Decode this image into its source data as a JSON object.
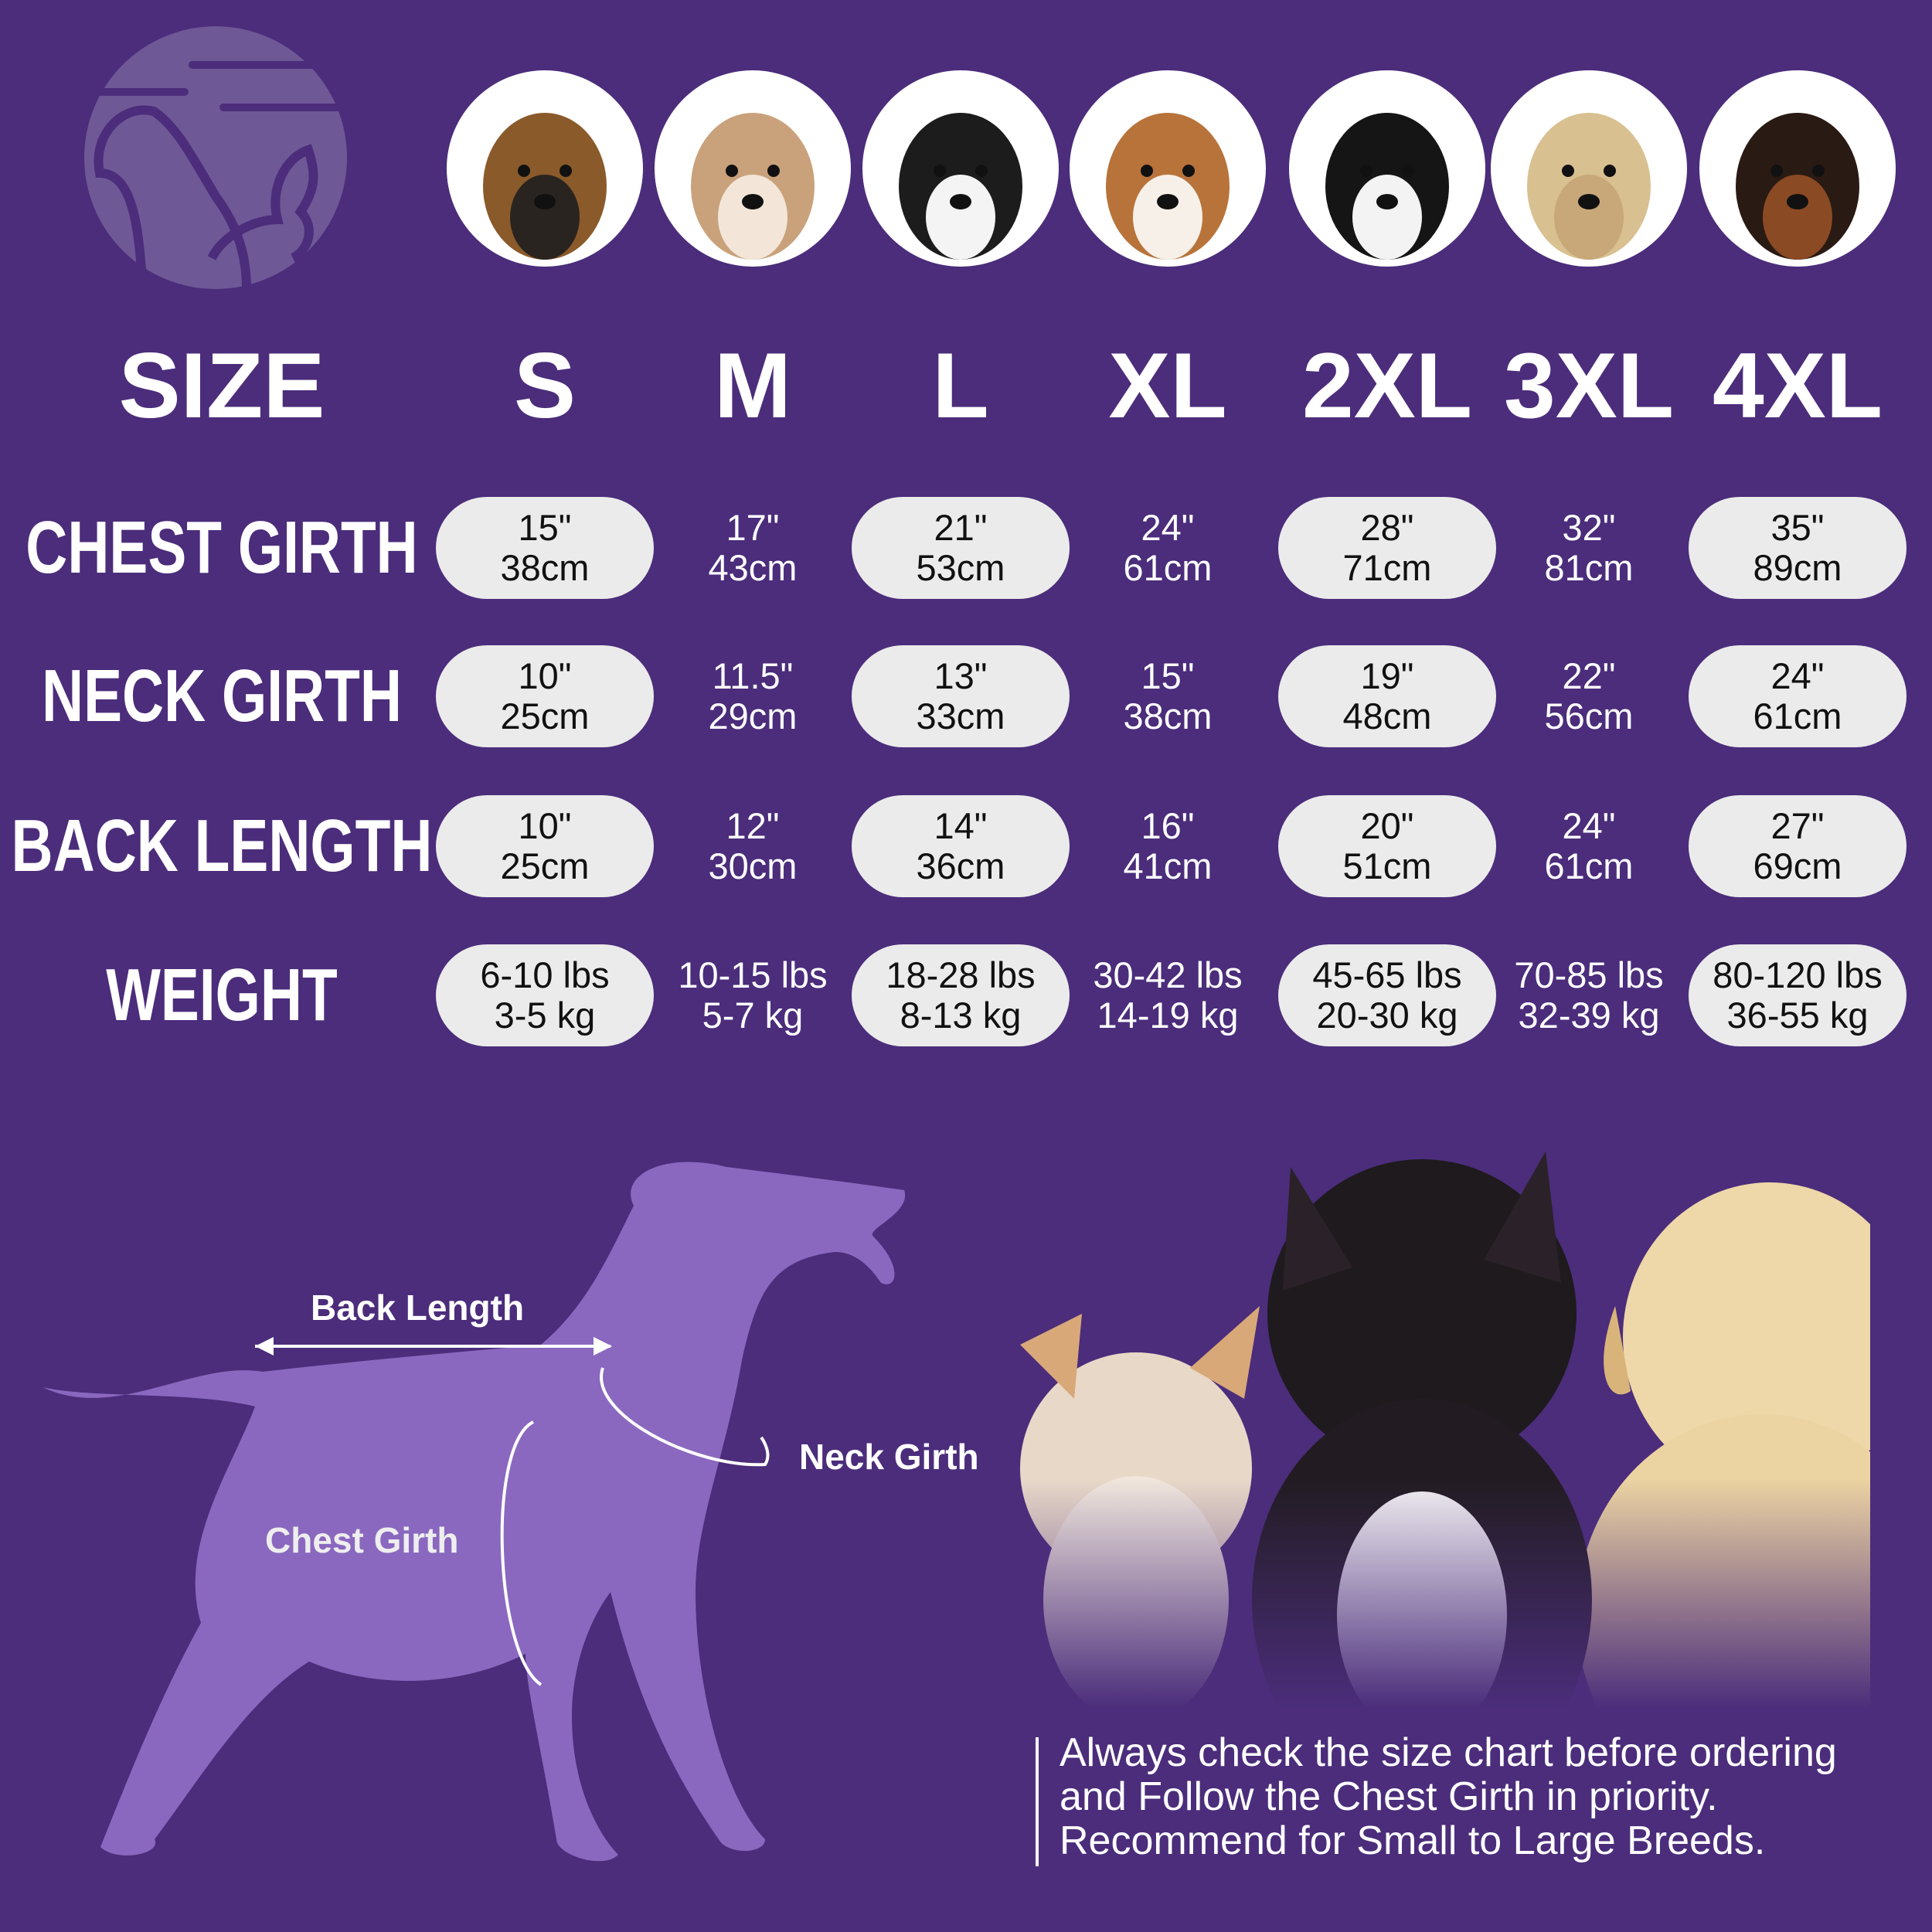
{
  "header": {
    "size_label": "SIZE"
  },
  "sizes": [
    "S",
    "M",
    "L",
    "XL",
    "2XL",
    "3XL",
    "4XL"
  ],
  "breed_icons": [
    "yorkshire-terrier",
    "shih-tzu",
    "boston-terrier",
    "beagle",
    "border-collie",
    "labrador",
    "doberman"
  ],
  "rows": [
    {
      "label": "CHEST GIRTH",
      "values": [
        [
          "15\"",
          "38cm"
        ],
        [
          "17\"",
          "43cm"
        ],
        [
          "21\"",
          "53cm"
        ],
        [
          "24\"",
          "61cm"
        ],
        [
          "28\"",
          "71cm"
        ],
        [
          "32\"",
          "81cm"
        ],
        [
          "35\"",
          "89cm"
        ]
      ]
    },
    {
      "label": "NECK GIRTH",
      "values": [
        [
          "10\"",
          "25cm"
        ],
        [
          "11.5\"",
          "29cm"
        ],
        [
          "13\"",
          "33cm"
        ],
        [
          "15\"",
          "38cm"
        ],
        [
          "19\"",
          "48cm"
        ],
        [
          "22\"",
          "56cm"
        ],
        [
          "24\"",
          "61cm"
        ]
      ]
    },
    {
      "label": "BACK LENGTH",
      "values": [
        [
          "10\"",
          "25cm"
        ],
        [
          "12\"",
          "30cm"
        ],
        [
          "14\"",
          "36cm"
        ],
        [
          "16\"",
          "41cm"
        ],
        [
          "20\"",
          "51cm"
        ],
        [
          "24\"",
          "61cm"
        ],
        [
          "27\"",
          "69cm"
        ]
      ]
    },
    {
      "label": "WEIGHT",
      "values": [
        [
          "6-10 lbs",
          "3-5 kg"
        ],
        [
          "10-15 lbs",
          "5-7 kg"
        ],
        [
          "18-28 lbs",
          "8-13 kg"
        ],
        [
          "30-42 lbs",
          "14-19 kg"
        ],
        [
          "45-65 lbs",
          "20-30 kg"
        ],
        [
          "70-85 lbs",
          "32-39 kg"
        ],
        [
          "80-120 lbs",
          "36-55 kg"
        ]
      ]
    }
  ],
  "diagram": {
    "back_length": "Back Length",
    "neck_girth": "Neck Girth",
    "chest_girth": "Chest Girth"
  },
  "note": [
    "Always check the size chart before ordering",
    "and Follow the Chest Girth in priority.",
    "Recommend for Small to Large Breeds."
  ],
  "colors": {
    "background": "#4b2d7b",
    "pill": "#ebebeb",
    "silhouette": "#8a68bf",
    "logo": "#6f5896"
  }
}
